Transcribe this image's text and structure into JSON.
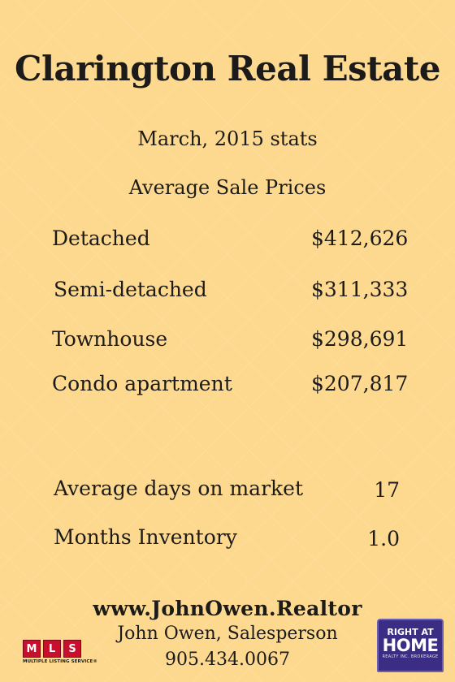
{
  "title": "Clarington Real Estate",
  "period": "March, 2015 stats",
  "section_heading": "Average Sale Prices",
  "prices": [
    {
      "label": "Detached",
      "value": "$412,626"
    },
    {
      "label": "Semi-detached",
      "value": "$311,333"
    },
    {
      "label": "Townhouse",
      "value": "$298,691"
    },
    {
      "label": "Condo apartment",
      "value": "$207,817"
    }
  ],
  "market_stats": [
    {
      "label": "Average days on market",
      "value": "17"
    },
    {
      "label": "Months Inventory",
      "value": "1.0"
    }
  ],
  "footer": {
    "website": "www.JohnOwen.Realtor",
    "agent": "John Owen, Salesperson",
    "phone": "905.434.0067"
  },
  "logos": {
    "mls": {
      "letters": [
        "M",
        "L",
        "S"
      ],
      "caption": "MULTIPLE LISTING SERVICE®",
      "color": "#c8102e"
    },
    "brokerage": {
      "line1": "RIGHT AT",
      "line2": "HOME",
      "line3": "REALTY INC. BROKERAGE",
      "color": "#3b2d84"
    }
  },
  "colors": {
    "background": "#fdd98f",
    "text": "#1c1b1a"
  }
}
